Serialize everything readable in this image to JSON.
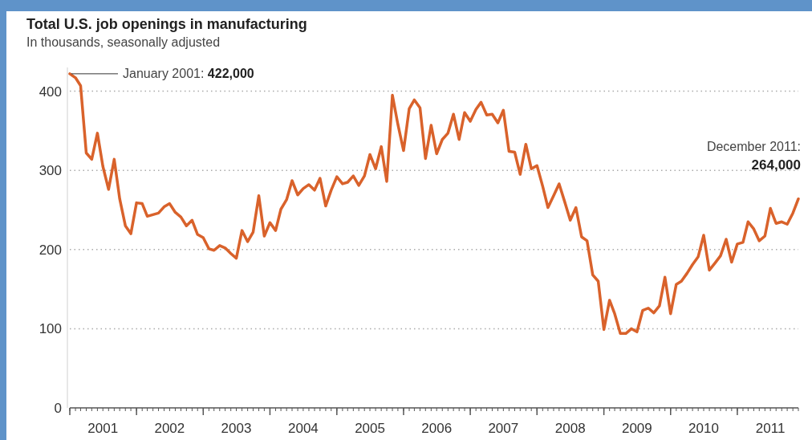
{
  "chart_data": {
    "type": "line",
    "title": "Total U.S. job openings in manufacturing",
    "subtitle": "In thousands, seasonally adjusted",
    "x": [
      "2001-01",
      "2001-02",
      "2001-03",
      "2001-04",
      "2001-05",
      "2001-06",
      "2001-07",
      "2001-08",
      "2001-09",
      "2001-10",
      "2001-11",
      "2001-12",
      "2002-01",
      "2002-02",
      "2002-03",
      "2002-05",
      "2002-06",
      "2002-07",
      "2002-08",
      "2002-09",
      "2002-10",
      "2002-11",
      "2002-12",
      "2003-01",
      "2003-02",
      "2003-03",
      "2003-04",
      "2003-05",
      "2003-06",
      "2003-07",
      "2003-08",
      "2003-09",
      "2003-10",
      "2003-11",
      "2003-12",
      "2004-01",
      "2004-02",
      "2004-03",
      "2004-04",
      "2004-05",
      "2004-06",
      "2004-07",
      "2004-08",
      "2004-09",
      "2004-10",
      "2004-11",
      "2004-12",
      "2005-01",
      "2005-02",
      "2005-03",
      "2005-04",
      "2005-05",
      "2005-06",
      "2005-07",
      "2005-08",
      "2005-09",
      "2005-10",
      "2005-11",
      "2005-12",
      "2006-01",
      "2006-02",
      "2006-03",
      "2006-04",
      "2006-05",
      "2006-06",
      "2006-07",
      "2006-08",
      "2006-09",
      "2006-10",
      "2006-11",
      "2006-12",
      "2007-01",
      "2007-02",
      "2007-03",
      "2007-04",
      "2007-05",
      "2007-06",
      "2007-07",
      "2007-08",
      "2007-09",
      "2007-10",
      "2007-11",
      "2007-12",
      "2008-01",
      "2008-02",
      "2008-03",
      "2008-04",
      "2008-05",
      "2008-06",
      "2008-07",
      "2008-08",
      "2008-09",
      "2008-10",
      "2008-11",
      "2008-12",
      "2009-01",
      "2009-02",
      "2009-03",
      "2009-04",
      "2009-05",
      "2009-06",
      "2009-07",
      "2009-08",
      "2009-09",
      "2009-10",
      "2009-11",
      "2009-12",
      "2010-01",
      "2010-02",
      "2010-03",
      "2010-04",
      "2010-05",
      "2010-06",
      "2010-07",
      "2010-08",
      "2010-09",
      "2010-10",
      "2010-11",
      "2010-12",
      "2011-01",
      "2011-02",
      "2011-03",
      "2011-04",
      "2011-05",
      "2011-06",
      "2011-07",
      "2011-08",
      "2011-09",
      "2011-10",
      "2011-11",
      "2011-12"
    ],
    "series": [
      {
        "color": "#d9622b",
        "values": [
          422,
          417,
          407,
          322,
          314,
          347,
          305,
          276,
          314,
          264,
          230,
          220,
          259,
          258,
          242,
          246,
          254,
          258,
          247,
          241,
          230,
          237,
          219,
          215,
          201,
          199,
          205,
          202,
          195,
          189,
          224,
          210,
          222,
          268,
          217,
          234,
          224,
          251,
          263,
          287,
          269,
          277,
          282,
          275,
          290,
          255,
          275,
          292,
          283,
          285,
          293,
          281,
          293,
          320,
          302,
          330,
          286,
          395,
          358,
          325,
          378,
          389,
          379,
          315,
          357,
          321,
          339,
          347,
          371,
          339,
          373,
          362,
          377,
          386,
          370,
          371,
          360,
          376,
          324,
          323,
          295,
          333,
          302,
          306,
          280,
          253,
          268,
          283,
          260,
          237,
          253,
          216,
          211,
          168,
          160,
          99,
          136,
          119,
          94,
          94,
          100,
          96,
          123,
          126,
          120,
          129,
          165,
          119,
          156,
          160,
          170,
          181,
          191,
          218,
          174,
          183,
          192,
          213,
          184,
          207,
          209,
          235,
          226,
          211,
          217,
          252,
          233,
          235,
          232,
          246,
          264
        ]
      }
    ],
    "xlim": [
      "2001-01",
      "2011-12"
    ],
    "xticks": [
      {
        "value": "2001-01",
        "label": null
      },
      {
        "value": "2001-07",
        "label": "2001"
      },
      {
        "value": "2002-01",
        "label": null
      },
      {
        "value": "2002-07",
        "label": "2002"
      },
      {
        "value": "2003-01",
        "label": null
      },
      {
        "value": "2003-07",
        "label": "2003"
      },
      {
        "value": "2004-01",
        "label": null
      },
      {
        "value": "2004-07",
        "label": "2004"
      },
      {
        "value": "2005-01",
        "label": null
      },
      {
        "value": "2005-07",
        "label": "2005"
      },
      {
        "value": "2006-01",
        "label": null
      },
      {
        "value": "2006-07",
        "label": "2006"
      },
      {
        "value": "2007-01",
        "label": null
      },
      {
        "value": "2007-07",
        "label": "2007"
      },
      {
        "value": "2008-01",
        "label": null
      },
      {
        "value": "2008-07",
        "label": "2008"
      },
      {
        "value": "2009-01",
        "label": null
      },
      {
        "value": "2009-07",
        "label": "2009"
      },
      {
        "value": "2010-01",
        "label": null
      },
      {
        "value": "2010-07",
        "label": "2010"
      },
      {
        "value": "2011-01",
        "label": null
      },
      {
        "value": "2011-07",
        "label": "2011"
      }
    ],
    "ylim": [
      0,
      430
    ],
    "yticks": [
      0,
      100,
      200,
      300,
      400
    ],
    "grid": "y",
    "marker": "none",
    "line_style": "solid",
    "annotations": [
      {
        "text": "January 2001: 422,000",
        "x": "2001-01",
        "y": 422
      },
      {
        "text": "December 2011: 264,000",
        "x": "2011-12",
        "y": 264
      }
    ]
  }
}
